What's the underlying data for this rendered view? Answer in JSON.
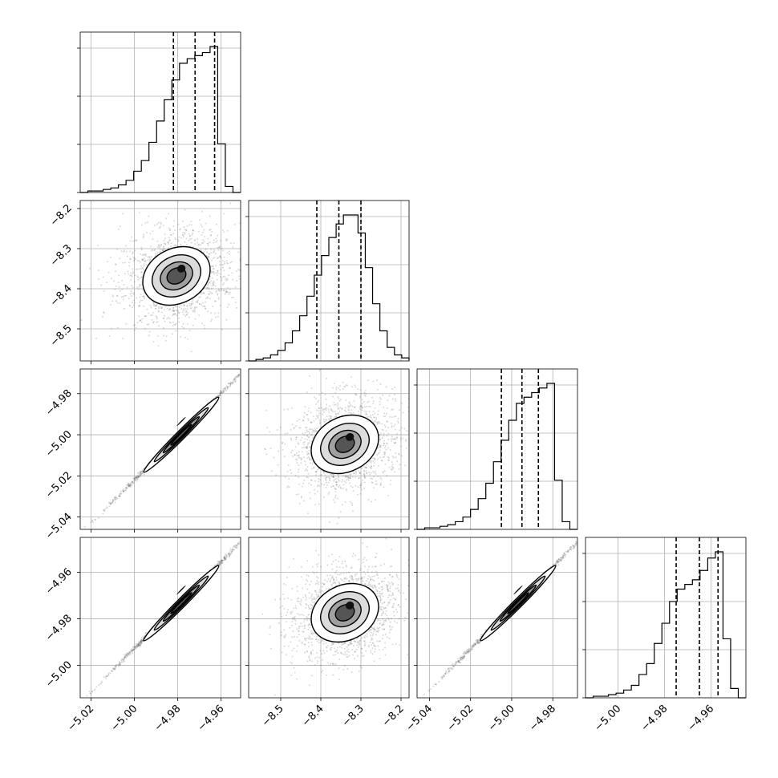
{
  "chart_data": {
    "type": "corner",
    "grid": true,
    "params": [
      {
        "range": [
          -5.025,
          -4.951
        ],
        "ticks": [
          -5.02,
          -5.0,
          -4.98,
          -4.96
        ],
        "tick_labels": [
          "−5.02",
          "−5.00",
          "−4.98",
          "−4.96"
        ],
        "quantiles": [
          -4.982,
          -4.972,
          -4.963
        ]
      },
      {
        "range": [
          -8.58,
          -8.18
        ],
        "ticks": [
          -8.5,
          -8.4,
          -8.3,
          -8.2
        ],
        "tick_labels": [
          "−8.5",
          "−8.4",
          "−8.3",
          "−8.2"
        ],
        "quantiles": [
          -8.41,
          -8.355,
          -8.3
        ]
      },
      {
        "range": [
          -5.046,
          -4.968
        ],
        "ticks": [
          -5.04,
          -5.02,
          -5.0,
          -4.98
        ],
        "tick_labels": [
          "−5.04",
          "−5.02",
          "−5.00",
          "−4.98"
        ],
        "quantiles": [
          -5.005,
          -4.995,
          -4.987
        ]
      },
      {
        "range": [
          -5.014,
          -4.945
        ],
        "ticks": [
          -5.0,
          -4.98,
          -4.96
        ],
        "tick_labels": [
          "−5.00",
          "−4.98",
          "−4.96"
        ],
        "quantiles": [
          -4.975,
          -4.965,
          -4.957
        ]
      }
    ],
    "histograms": [
      [
        0,
        1,
        1,
        2,
        3,
        5,
        8,
        14,
        21,
        33,
        47,
        61,
        74,
        85,
        88,
        90,
        92,
        96,
        32,
        4,
        0
      ],
      [
        0,
        1,
        2,
        4,
        7,
        12,
        20,
        30,
        43,
        57,
        70,
        82,
        91,
        97,
        97,
        85,
        62,
        38,
        20,
        9,
        4,
        2
      ],
      [
        0,
        1,
        1,
        2,
        3,
        5,
        8,
        13,
        20,
        30,
        44,
        58,
        71,
        82,
        86,
        89,
        92,
        95,
        32,
        5,
        0
      ],
      [
        0,
        1,
        1,
        2,
        3,
        5,
        8,
        15,
        22,
        35,
        48,
        62,
        70,
        73,
        76,
        82,
        90,
        94,
        38,
        6,
        0
      ]
    ]
  }
}
